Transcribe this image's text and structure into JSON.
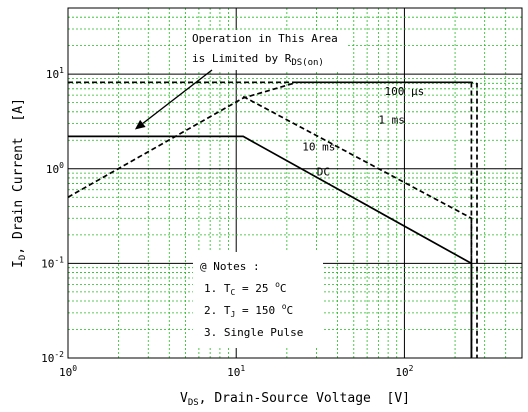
{
  "chart_data": {
    "type": "line",
    "xscale": "log",
    "yscale": "log",
    "xlim": [
      1,
      500
    ],
    "ylim": [
      0.01,
      50
    ],
    "grid": true,
    "xlabel": {
      "main": "V",
      "sub": "DS",
      "rest": ", Drain-Source Voltage  [V]"
    },
    "ylabel": {
      "main": "I",
      "sub": "D",
      "rest": ", Drain Current  [A]"
    },
    "xticks": [
      {
        "value": 1,
        "base": "10",
        "exp": "0"
      },
      {
        "value": 10,
        "base": "10",
        "exp": "1"
      },
      {
        "value": 100,
        "base": "10",
        "exp": "2"
      }
    ],
    "yticks": [
      {
        "value": 0.01,
        "base": "10",
        "exp": "-2"
      },
      {
        "value": 0.1,
        "base": "10",
        "exp": "-1"
      },
      {
        "value": 1,
        "base": "10",
        "exp": "0"
      },
      {
        "value": 10,
        "base": "10",
        "exp": "1"
      }
    ],
    "series": [
      {
        "name": "DC",
        "style": "solid",
        "points": [
          [
            1,
            2.2
          ],
          [
            11,
            2.2
          ],
          [
            250,
            0.1
          ],
          [
            250,
            0.01
          ]
        ]
      },
      {
        "name": "10 ms",
        "style": "dashed",
        "points": [
          [
            1,
            0.5
          ],
          [
            11,
            5.6
          ],
          [
            23,
            8.2
          ],
          [
            250,
            8.2
          ],
          [
            250,
            0.01
          ]
        ]
      },
      {
        "name": "1 ms",
        "style": "dashed",
        "points": [
          [
            11,
            5.8
          ],
          [
            250,
            0.3
          ],
          [
            250,
            0.01
          ]
        ]
      },
      {
        "name": "100 µs",
        "style": "dashed",
        "points": [
          [
            1,
            8.2
          ],
          [
            250,
            8.2
          ],
          [
            270,
            7.9
          ],
          [
            270,
            0.01
          ]
        ]
      }
    ],
    "series_labels": [
      {
        "text": "DC",
        "x": 33,
        "y": 0.85
      },
      {
        "text": "10 ms",
        "x": 31,
        "y": 1.55
      },
      {
        "text": "1 ms",
        "x": 84,
        "y": 3.0
      },
      {
        "text": "100 µs",
        "x": 100,
        "y": 6.0
      }
    ],
    "annotation": {
      "line1": "Operation in This Area",
      "line2_main": "is Limited by R",
      "line2_sub": "DS(on)",
      "arrow_to": {
        "x": 2.5,
        "y": 2.6
      }
    },
    "notes": {
      "title": "@ Notes :",
      "item1_prefix": "1. T",
      "item1_sub": "C",
      "item1_value": " = 25 ",
      "item1_deg": "o",
      "item1_unit": "C",
      "item2_prefix": "2. T",
      "item2_sub": "J",
      "item2_value": " = 150 ",
      "item2_deg": "o",
      "item2_unit": "C",
      "item3": "3. Single Pulse"
    }
  }
}
